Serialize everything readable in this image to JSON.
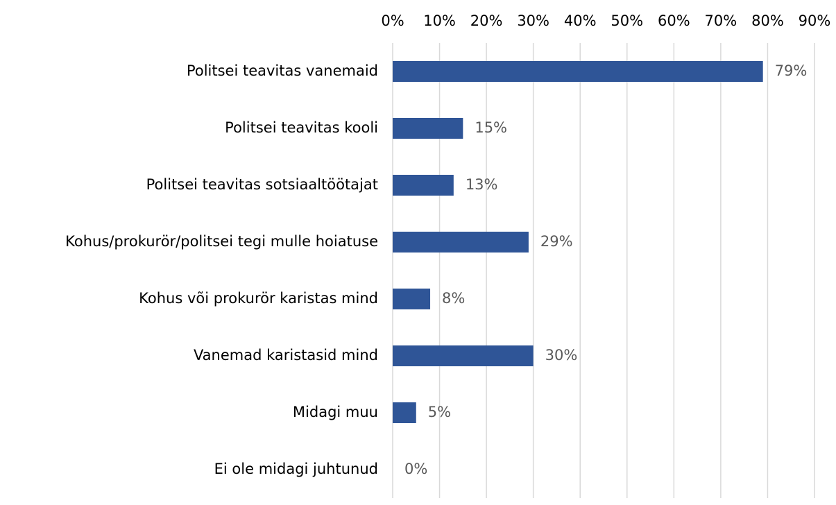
{
  "chart_data": {
    "type": "bar",
    "orientation": "horizontal",
    "categories": [
      "Politsei teavitas vanemaid",
      "Politsei teavitas kooli",
      "Politsei teavitas sotsiaaltöötajat",
      "Kohus/prokurör/politsei tegi mulle hoiatuse",
      "Kohus või prokurör karistas mind",
      "Vanemad karistasid mind",
      "Midagi muu",
      "Ei ole midagi juhtunud"
    ],
    "values": [
      79,
      15,
      13,
      29,
      8,
      30,
      5,
      0
    ],
    "value_labels": [
      "79%",
      "15%",
      "13%",
      "29%",
      "8%",
      "30%",
      "5%",
      "0%"
    ],
    "color": "#2f5597",
    "xlim": [
      0,
      90
    ],
    "xticks": [
      {
        "value": 0,
        "label": "0%"
      },
      {
        "value": 10,
        "label": "10%"
      },
      {
        "value": 20,
        "label": "20%"
      },
      {
        "value": 30,
        "label": "30%"
      },
      {
        "value": 40,
        "label": "40%"
      },
      {
        "value": 50,
        "label": "50%"
      },
      {
        "value": 60,
        "label": "60%"
      },
      {
        "value": 70,
        "label": "70%"
      },
      {
        "value": 80,
        "label": "80%"
      },
      {
        "value": 90,
        "label": "90%"
      }
    ],
    "grid": true
  }
}
